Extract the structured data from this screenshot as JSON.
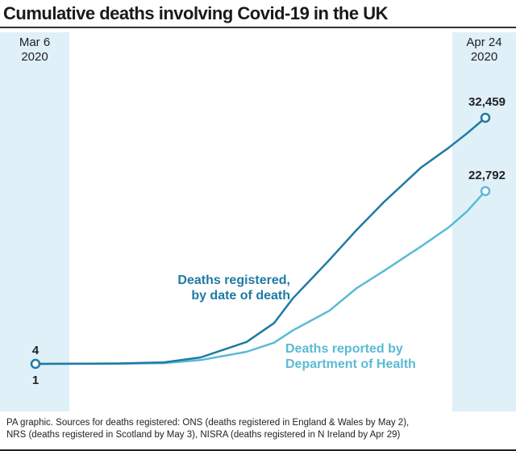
{
  "chart_data": {
    "type": "line",
    "title": "Cumulative deaths involving Covid-19 in the UK",
    "x_start_label": [
      "Mar 6",
      "2020"
    ],
    "x_end_label": [
      "Apr 24",
      "2020"
    ],
    "x_unit": "days since Mar 6 2020",
    "xlim": [
      0,
      49
    ],
    "ylim": [
      0,
      32459
    ],
    "grid": false,
    "series": [
      {
        "name": "Deaths registered, by date of death",
        "label_lines": [
          "Deaths registered,",
          "by date of death"
        ],
        "color": "#1f7aa3",
        "start_label": "4",
        "end_label": "32,459",
        "x": [
          0,
          9,
          14,
          18,
          23,
          26,
          28,
          32,
          35,
          38,
          42,
          45,
          47,
          49
        ],
        "values": [
          4,
          50,
          200,
          850,
          2900,
          5400,
          8600,
          13700,
          17700,
          21400,
          25900,
          28500,
          30400,
          32459
        ]
      },
      {
        "name": "Deaths reported by Department of Health",
        "label_lines": [
          "Deaths reported by",
          "Department of Health"
        ],
        "color": "#5bbad5",
        "start_label": "1",
        "end_label": "22,792",
        "x": [
          0,
          9,
          14,
          18,
          23,
          26,
          28,
          32,
          35,
          38,
          42,
          45,
          47,
          49
        ],
        "values": [
          1,
          20,
          100,
          500,
          1600,
          2800,
          4400,
          7000,
          10000,
          12300,
          15500,
          18000,
          20100,
          22792
        ]
      }
    ]
  },
  "source": [
    "PA graphic. Sources for deaths registered: ONS (deaths registered in England & Wales by May 2),",
    "NRS (deaths registered in Scotland by May 3), NISRA (deaths registered in N Ireland by Apr 29)"
  ]
}
